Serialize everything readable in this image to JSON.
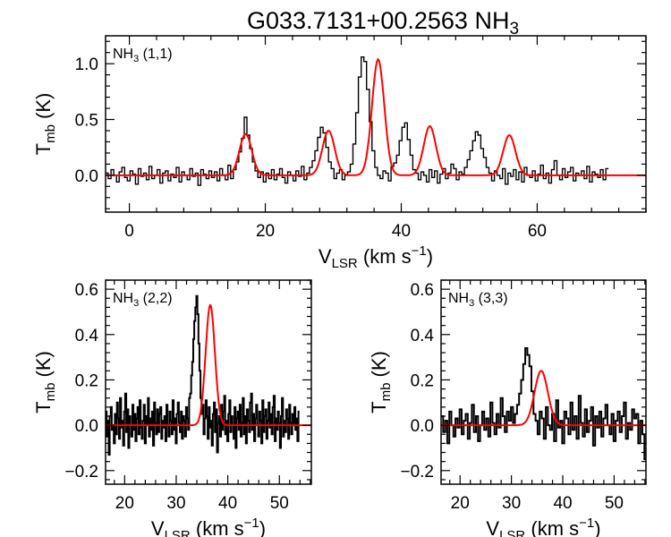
{
  "figure": {
    "title_main": "G033.7131+00.2563 NH",
    "title_sub": "3"
  },
  "chart_data": [
    {
      "type": "line",
      "panel_label": {
        "main": "NH",
        "sub": "3",
        "rest": " (1,1)"
      },
      "xlabel": {
        "main": "V",
        "sub": "LSR",
        "rest": " (km s",
        "sup": "−1",
        "close": ")"
      },
      "ylabel": {
        "main": "T",
        "sub": "mb",
        "rest": " (K)"
      },
      "xlim": [
        -3.5,
        76
      ],
      "ylim": [
        -0.33,
        1.25
      ],
      "xticks": [
        0,
        20,
        40,
        60
      ],
      "yticks": [
        0.0,
        0.5,
        1.0
      ],
      "ytick_labels": [
        "0.0",
        "0.5",
        "1.0"
      ],
      "series": [
        {
          "kind": "observed",
          "color": "#000000",
          "x_start": -3.5,
          "x_step": 0.4,
          "values": [
            0.02,
            -0.03,
            0.05,
            0.0,
            -0.06,
            0.03,
            0.07,
            -0.02,
            -0.05,
            0.04,
            0.01,
            -0.08,
            0.06,
            -0.01,
            0.02,
            -0.04,
            0.08,
            -0.03,
            0.0,
            0.05,
            -0.07,
            0.02,
            0.04,
            -0.05,
            0.01,
            -0.02,
            0.07,
            -0.06,
            0.03,
            0.0,
            -0.04,
            0.06,
            -0.01,
            0.02,
            -0.09,
            0.05,
            0.01,
            -0.03,
            0.04,
            -0.02,
            0.03,
            -0.05,
            0.06,
            0.0,
            -0.04,
            0.09,
            -0.03,
            0.05,
            0.12,
            0.21,
            0.33,
            0.52,
            0.36,
            0.24,
            0.12,
            0.04,
            -0.02,
            0.03,
            -0.06,
            0.02,
            -0.03,
            0.05,
            -0.04,
            0.01,
            0.06,
            -0.02,
            -0.07,
            0.03,
            0.0,
            -0.05,
            0.04,
            -0.01,
            0.08,
            -0.04,
            0.02,
            0.07,
            0.13,
            0.22,
            0.34,
            0.43,
            0.38,
            0.25,
            0.12,
            0.06,
            -0.03,
            0.02,
            0.05,
            -0.04,
            0.0,
            0.03,
            0.1,
            0.28,
            0.56,
            0.88,
            1.06,
            1.02,
            0.77,
            0.48,
            0.22,
            0.07,
            0.0,
            -0.03,
            0.04,
            0.02,
            -0.05,
            0.08,
            0.11,
            0.18,
            0.31,
            0.43,
            0.47,
            0.32,
            0.18,
            0.05,
            0.02,
            -0.04,
            0.03,
            0.0,
            -0.06,
            0.05,
            -0.02,
            0.04,
            -0.07,
            0.01,
            0.06,
            -0.03,
            0.02,
            0.1,
            0.06,
            -0.04,
            0.03,
            0.01,
            0.07,
            0.14,
            0.22,
            0.31,
            0.39,
            0.36,
            0.24,
            0.16,
            0.07,
            0.02,
            -0.05,
            0.04,
            0.0,
            -0.03,
            0.06,
            -0.08,
            0.02,
            -0.01,
            0.05,
            -0.04,
            0.03,
            -0.06,
            0.07,
            0.0,
            -0.02,
            0.04,
            -0.05,
            0.01,
            0.09,
            -0.03,
            0.02,
            -0.07,
            0.05,
            0.13,
            0.0,
            -0.04,
            0.06,
            -0.02,
            0.03,
            0.07,
            -0.05,
            0.02,
            0.0,
            0.04,
            -0.03,
            0.08,
            -0.06,
            0.03,
            0.01,
            -0.02,
            0.05,
            -0.04,
            0.06
          ]
        },
        {
          "kind": "fit",
          "color": "#ff0000",
          "components": [
            {
              "amp": 0.37,
              "center": 17.1,
              "sigma": 0.9
            },
            {
              "amp": 0.4,
              "center": 29.3,
              "sigma": 0.9
            },
            {
              "amp": 1.04,
              "center": 36.6,
              "sigma": 0.9
            },
            {
              "amp": 0.44,
              "center": 44.2,
              "sigma": 0.9
            },
            {
              "amp": 0.36,
              "center": 55.9,
              "sigma": 0.9
            }
          ]
        }
      ]
    },
    {
      "type": "line",
      "panel_label": {
        "main": "NH",
        "sub": "3",
        "rest": " (2,2)"
      },
      "xlabel": {
        "main": "V",
        "sub": "LSR",
        "rest": " (km s",
        "sup": "−1",
        "close": ")"
      },
      "ylabel": {
        "main": "T",
        "sub": "mb",
        "rest": " (K)"
      },
      "xlim": [
        16.3,
        56.2
      ],
      "ylim": [
        -0.26,
        0.64
      ],
      "xticks": [
        20,
        30,
        40,
        50
      ],
      "yticks": [
        -0.2,
        0.0,
        0.2,
        0.4,
        0.6
      ],
      "ytick_labels": [
        "−0.2",
        "0.0",
        "0.2",
        "0.4",
        "0.6"
      ],
      "series": [
        {
          "kind": "observed",
          "color": "#000000",
          "x_start": 16.3,
          "x_step": 0.2,
          "values": [
            0.06,
            -0.05,
            0.02,
            -0.13,
            0.04,
            0.08,
            -0.02,
            0.0,
            -0.08,
            0.05,
            -0.04,
            0.1,
            0.03,
            -0.06,
            0.12,
            -0.01,
            0.02,
            -0.09,
            0.06,
            0.14,
            -0.03,
            0.07,
            -0.1,
            0.04,
            0.0,
            -0.05,
            0.09,
            -0.02,
            0.05,
            -0.07,
            0.03,
            0.08,
            -0.04,
            0.11,
            -0.01,
            -0.06,
            0.02,
            0.09,
            -0.08,
            0.04,
            0.0,
            0.12,
            -0.05,
            0.03,
            -0.02,
            0.06,
            -0.09,
            0.1,
            0.01,
            -0.04,
            0.07,
            -0.03,
            0.05,
            0.08,
            -0.06,
            0.02,
            -0.01,
            0.04,
            -0.07,
            0.09,
            0.0,
            -0.05,
            0.06,
            0.02,
            -0.04,
            0.11,
            -0.02,
            0.03,
            -0.08,
            0.05,
            0.1,
            0.01,
            -0.03,
            0.06,
            -0.06,
            0.04,
            0.02,
            -0.05,
            0.08,
            0.03,
            -0.02,
            0.12,
            0.14,
            0.22,
            0.28,
            0.38,
            0.46,
            0.52,
            0.57,
            0.49,
            0.36,
            0.24,
            0.12,
            0.05,
            0.09,
            -0.04,
            0.03,
            0.11,
            0.04,
            -0.06,
            0.08,
            -0.01,
            0.02,
            -0.09,
            0.05,
            0.1,
            -0.03,
            0.07,
            -0.12,
            0.01,
            0.04,
            -0.05,
            0.09,
            -0.02,
            0.06,
            0.13,
            -0.04,
            0.02,
            -0.07,
            0.05,
            0.11,
            -0.03,
            0.04,
            0.0,
            -0.06,
            0.08,
            -0.1,
            0.03,
            0.06,
            -0.02,
            0.09,
            -0.05,
            0.01,
            0.12,
            -0.04,
            0.04,
            -0.08,
            0.07,
            0.02,
            -0.03,
            0.1,
            0.14,
            -0.02,
            0.05,
            -0.07,
            0.03,
            0.09,
            0.0,
            -0.05,
            0.06,
            0.02,
            -0.08,
            0.11,
            -0.03,
            0.04,
            0.07,
            -0.06,
            0.02,
            0.1,
            -0.01,
            0.05,
            -0.04,
            0.08,
            0.13,
            -0.07,
            0.03,
            -0.02,
            0.06,
            0.01,
            -0.1,
            0.04,
            0.12,
            -0.05,
            0.02,
            -0.03,
            0.07,
            0.03,
            -0.06,
            0.09,
            0.01,
            -0.04,
            0.05,
            0.0,
            0.08,
            -0.02,
            0.03,
            -0.07,
            0.06
          ]
        },
        {
          "kind": "fit",
          "color": "#ff0000",
          "components": [
            {
              "amp": 0.53,
              "center": 36.6,
              "sigma": 0.9
            }
          ]
        }
      ]
    },
    {
      "type": "line",
      "panel_label": {
        "main": "NH",
        "sub": "3",
        "rest": " (3,3)"
      },
      "xlabel": {
        "main": "V",
        "sub": "LSR",
        "rest": " (km s",
        "sup": "−1",
        "close": ")"
      },
      "ylabel": {
        "main": "T",
        "sub": "mb",
        "rest": " (K)"
      },
      "xlim": [
        16.3,
        56.2
      ],
      "ylim": [
        -0.26,
        0.64
      ],
      "xticks": [
        20,
        30,
        40,
        50
      ],
      "yticks": [
        -0.2,
        0.0,
        0.2,
        0.4,
        0.6
      ],
      "ytick_labels": [
        "−0.2",
        "0.0",
        "0.2",
        "0.4",
        "0.6"
      ],
      "series": [
        {
          "kind": "observed",
          "color": "#000000",
          "x_start": 16.3,
          "x_step": 0.4,
          "values": [
            0.04,
            -0.03,
            0.02,
            -0.08,
            0.06,
            0.0,
            -0.05,
            0.03,
            -0.01,
            0.07,
            -0.04,
            0.02,
            0.05,
            -0.06,
            0.01,
            0.09,
            -0.03,
            0.04,
            -0.07,
            0.0,
            0.06,
            -0.02,
            0.03,
            -0.05,
            0.1,
            0.01,
            -0.04,
            0.05,
            -0.01,
            0.12,
            0.04,
            -0.03,
            0.06,
            0.02,
            0.08,
            0.01,
            0.05,
            0.09,
            0.14,
            0.2,
            0.27,
            0.34,
            0.31,
            0.26,
            0.15,
            0.05,
            0.02,
            -0.04,
            0.06,
            0.03,
            -0.06,
            0.08,
            0.0,
            -0.02,
            0.05,
            -0.07,
            0.11,
            -0.01,
            0.02,
            -0.08,
            0.06,
            0.03,
            -0.04,
            0.1,
            -0.02,
            0.04,
            -0.06,
            0.13,
            0.01,
            -0.05,
            0.07,
            -0.03,
            0.02,
            0.08,
            -0.09,
            0.04,
            -0.01,
            0.06,
            -0.05,
            0.03,
            0.09,
            0.0,
            -0.04,
            0.05,
            -0.07,
            0.02,
            0.06,
            -0.03,
            0.04,
            0.1,
            -0.06,
            0.01,
            -0.02,
            0.07,
            0.03,
            0.05,
            -0.08,
            0.02,
            -0.04,
            -0.15
          ]
        },
        {
          "kind": "fit",
          "color": "#ff0000",
          "components": [
            {
              "amp": 0.24,
              "center": 35.8,
              "sigma": 1.3
            }
          ]
        }
      ]
    }
  ]
}
